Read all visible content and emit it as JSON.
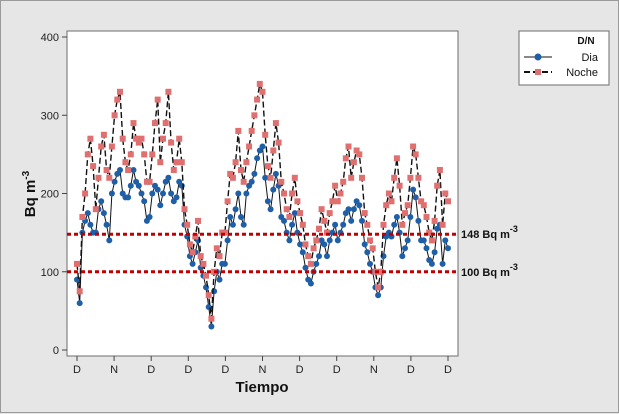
{
  "chart_data": {
    "type": "line",
    "title": "",
    "xlabel": "Tiempo",
    "ylabel": "Bq m",
    "ylabel_superscript": "-3",
    "ylim": [
      0,
      400
    ],
    "yticks": [
      0,
      100,
      200,
      300,
      400
    ],
    "xtick_labels": [
      "D",
      "N",
      "D",
      "D",
      "D",
      "N",
      "D",
      "D",
      "N",
      "D",
      "D"
    ],
    "legend": {
      "title": "D/N",
      "position": "top-right",
      "entries": [
        {
          "label": "Dia",
          "color": "#1f5fa8",
          "marker": "circle",
          "line": "solid"
        },
        {
          "label": "Noche",
          "color": "#e07070",
          "marker": "square",
          "line": "dashed"
        }
      ]
    },
    "reference_lines": [
      {
        "value": 148,
        "label": "148 Bq m",
        "superscript": "-3",
        "color": "#c00000"
      },
      {
        "value": 100,
        "label": "100 Bq m",
        "superscript": "-3",
        "color": "#c00000"
      }
    ],
    "series": [
      {
        "name": "Dia",
        "color": "#1f5fa8",
        "values": [
          90,
          60,
          150,
          165,
          175,
          160,
          150,
          150,
          180,
          190,
          175,
          160,
          140,
          200,
          215,
          225,
          230,
          200,
          195,
          195,
          210,
          230,
          215,
          210,
          200,
          190,
          165,
          170,
          200,
          210,
          205,
          185,
          200,
          215,
          220,
          200,
          190,
          195,
          215,
          210,
          160,
          145,
          120,
          110,
          125,
          140,
          105,
          95,
          80,
          55,
          30,
          75,
          100,
          90,
          110,
          110,
          140,
          170,
          160,
          180,
          200,
          170,
          160,
          200,
          210,
          215,
          225,
          245,
          255,
          260,
          220,
          190,
          180,
          205,
          225,
          210,
          170,
          165,
          150,
          140,
          160,
          175,
          150,
          135,
          125,
          105,
          90,
          85,
          100,
          110,
          120,
          140,
          135,
          120,
          140,
          150,
          160,
          140,
          150,
          160,
          175,
          180,
          165,
          180,
          190,
          185,
          165,
          135,
          125,
          110,
          100,
          80,
          70,
          80,
          120,
          145,
          150,
          145,
          160,
          170,
          150,
          120,
          130,
          140,
          170,
          205,
          195,
          165,
          140,
          140,
          130,
          115,
          110,
          125,
          155,
          160,
          110,
          140,
          130
        ]
      },
      {
        "name": "Noche",
        "color": "#e07070",
        "values": [
          110,
          75,
          170,
          200,
          250,
          270,
          235,
          180,
          220,
          260,
          275,
          230,
          220,
          260,
          300,
          320,
          330,
          270,
          240,
          230,
          250,
          290,
          270,
          265,
          270,
          250,
          215,
          215,
          250,
          290,
          320,
          240,
          270,
          290,
          330,
          265,
          230,
          240,
          270,
          240,
          180,
          160,
          135,
          125,
          145,
          165,
          120,
          110,
          95,
          70,
          40,
          100,
          130,
          120,
          150,
          150,
          190,
          225,
          220,
          240,
          280,
          230,
          215,
          240,
          260,
          280,
          300,
          320,
          340,
          330,
          275,
          235,
          220,
          255,
          290,
          265,
          215,
          200,
          180,
          170,
          200,
          220,
          190,
          175,
          160,
          135,
          120,
          110,
          130,
          140,
          155,
          180,
          165,
          150,
          175,
          190,
          210,
          190,
          200,
          215,
          245,
          260,
          220,
          240,
          255,
          250,
          220,
          175,
          160,
          140,
          130,
          100,
          80,
          100,
          160,
          185,
          200,
          190,
          220,
          245,
          210,
          160,
          175,
          185,
          220,
          260,
          250,
          220,
          190,
          185,
          170,
          150,
          140,
          165,
          210,
          230,
          160,
          200,
          190
        ]
      }
    ]
  }
}
